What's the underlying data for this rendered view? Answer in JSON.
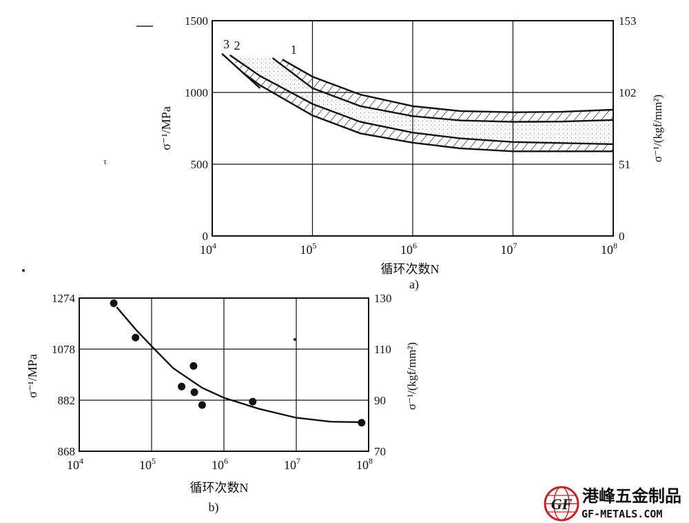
{
  "chart_data": [
    {
      "type": "line",
      "caption": "a)",
      "xlabel": "循环次数N",
      "ylabel_left": "σ⁻¹/MPa",
      "ylabel_right": "σ⁻¹/(kgf/mm²)",
      "xscale": "log",
      "xlim": [
        10000,
        100000000
      ],
      "x_ticks": [
        {
          "base": "10",
          "exp": "4"
        },
        {
          "base": "10",
          "exp": "5"
        },
        {
          "base": "10",
          "exp": "6"
        },
        {
          "base": "10",
          "exp": "7"
        },
        {
          "base": "10",
          "exp": "8"
        }
      ],
      "ylim": [
        0,
        1500
      ],
      "y_ticks_left": [
        "0",
        "500",
        "1000",
        "1500"
      ],
      "y_ticks_right": [
        "0",
        "51",
        "102",
        "153"
      ],
      "grid": true,
      "series": [
        {
          "name": "1",
          "band": "upper",
          "upper": [
            [
              50000,
              1230
            ],
            [
              100000,
              1110
            ],
            [
              300000,
              985
            ],
            [
              1000000,
              905
            ],
            [
              3000000,
              870
            ],
            [
              10000000,
              862
            ],
            [
              30000000,
              865
            ],
            [
              100000000,
              880
            ]
          ],
          "lower": [
            [
              40000,
              1240
            ],
            [
              100000,
              1030
            ],
            [
              300000,
              905
            ],
            [
              1000000,
              835
            ],
            [
              3000000,
              805
            ],
            [
              10000000,
              795
            ],
            [
              30000000,
              797
            ],
            [
              100000000,
              808
            ]
          ]
        },
        {
          "name": "2",
          "band": "lower",
          "upper": [
            [
              15000,
              1260
            ],
            [
              30000,
              1115
            ],
            [
              100000,
              920
            ],
            [
              300000,
              795
            ],
            [
              1000000,
              720
            ],
            [
              3000000,
              680
            ],
            [
              10000000,
              655
            ],
            [
              100000000,
              640
            ]
          ],
          "lower": [
            [
              20000,
              1140
            ],
            [
              30000,
              1050
            ],
            [
              100000,
              840
            ],
            [
              300000,
              715
            ],
            [
              1000000,
              650
            ],
            [
              3000000,
              610
            ],
            [
              10000000,
              590
            ],
            [
              100000000,
              590
            ]
          ]
        },
        {
          "name": "3",
          "band": "none",
          "upper": [
            [
              12500,
              1270
            ],
            [
              30000,
              1030
            ]
          ],
          "lower": []
        }
      ]
    },
    {
      "type": "scatter",
      "caption": "b)",
      "xlabel": "循环次数N",
      "ylabel_left": "σ⁻¹/MPa",
      "ylabel_right": "σ⁻¹/(kgf/mm²)",
      "xscale": "log",
      "xlim": [
        10000,
        100000000
      ],
      "x_ticks": [
        {
          "base": "10",
          "exp": "4"
        },
        {
          "base": "10",
          "exp": "5"
        },
        {
          "base": "10",
          "exp": "6"
        },
        {
          "base": "10",
          "exp": "7"
        },
        {
          "base": "10",
          "exp": "8"
        }
      ],
      "ylim": [
        868,
        1274
      ],
      "y_ticks_left": [
        "868",
        "882",
        "1078",
        "1274"
      ],
      "y_ticks_right": [
        "70",
        "90",
        "110",
        "130"
      ],
      "grid": true,
      "points": [
        [
          30000,
          1255
        ],
        [
          60000,
          1123
        ],
        [
          260000,
          935
        ],
        [
          380000,
          1014
        ],
        [
          390000,
          913
        ],
        [
          500000,
          864
        ],
        [
          2500000,
          877
        ],
        [
          80000000,
          796
        ]
      ],
      "fit": [
        [
          33000,
          1240
        ],
        [
          60000,
          1155
        ],
        [
          100000,
          1090
        ],
        [
          200000,
          1005
        ],
        [
          500000,
          930
        ],
        [
          1000000,
          892
        ],
        [
          3000000,
          850
        ],
        [
          10000000,
          815
        ],
        [
          30000000,
          800
        ],
        [
          80000000,
          798
        ]
      ]
    }
  ],
  "watermark": {
    "emblem": "GF",
    "name": "港峰五金制品",
    "url": "GF-METALS.COM",
    "colors": {
      "red": "#c8202a",
      "blue": "#2a4a8a"
    }
  }
}
